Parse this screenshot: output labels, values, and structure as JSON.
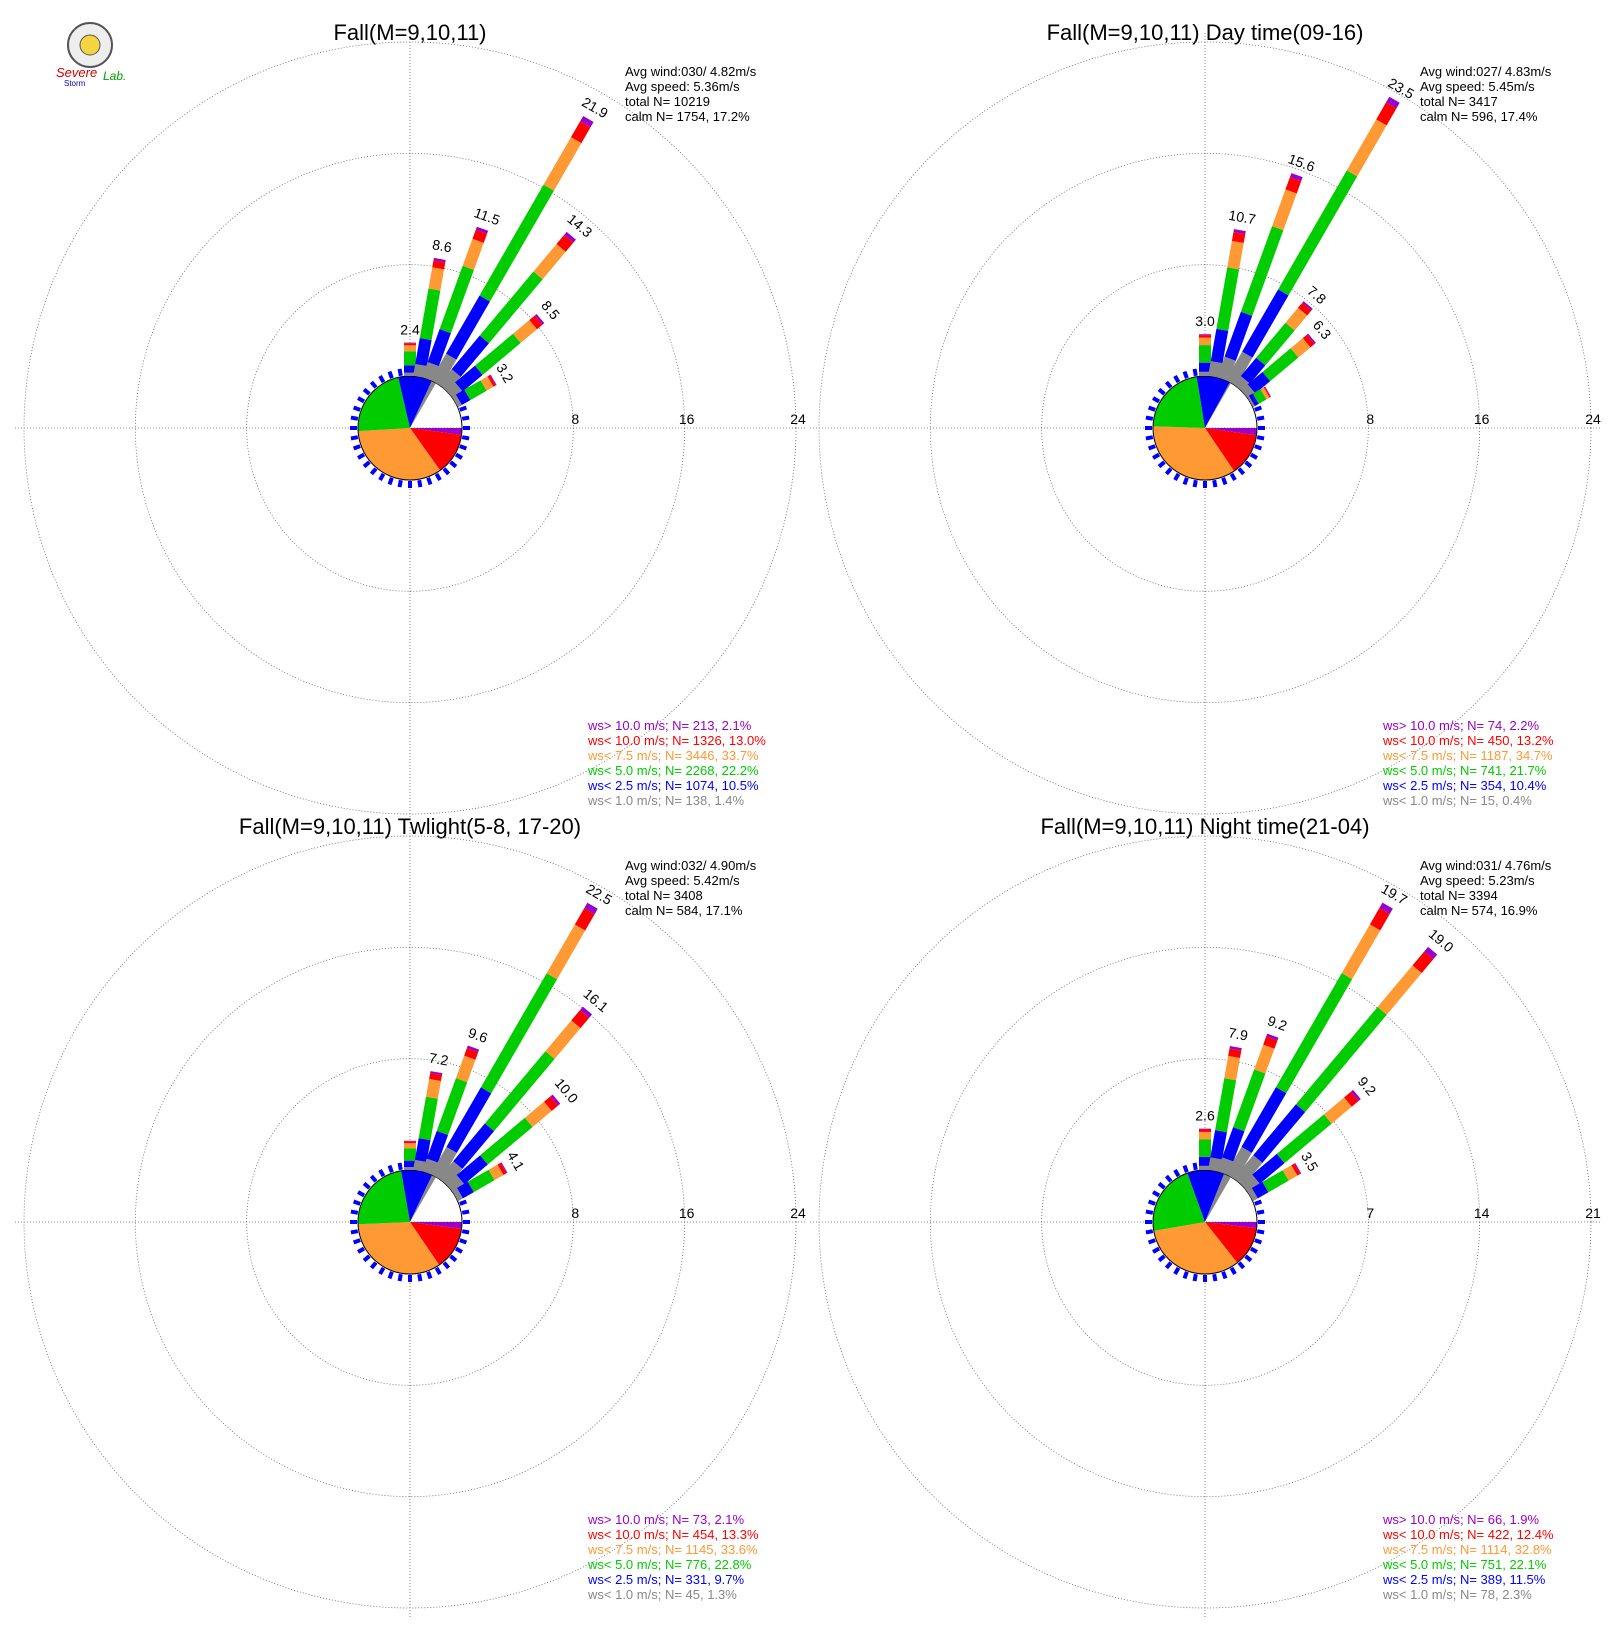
{
  "logo": {
    "line1": "Severe",
    "line2": "Storm",
    "line3": "Lab."
  },
  "colors": {
    "ws_gt10": "#9900cc",
    "ws_lt10": "#ff0000",
    "ws_lt7_5": "#ff9933",
    "ws_lt5": "#00cc00",
    "ws_lt2_5": "#0000ff",
    "ws_lt1": "#888888",
    "grid": "#666666",
    "text": "#000000"
  },
  "chart_data": [
    {
      "type": "wind-rose",
      "title": "Fall(M=9,10,11)",
      "rings": [
        8,
        16,
        24
      ],
      "grid": true,
      "stats": [
        "Avg wind:030/ 4.82m/s",
        "Avg speed: 5.36m/s",
        "total N=       10219",
        "calm N=   1754,  17.2%"
      ],
      "legend": [
        "ws> 10.0 m/s; N=   213,  2.1%",
        "ws< 10.0 m/s; N=  1326, 13.0%",
        "ws<  7.5 m/s; N=  3446, 33.7%",
        "ws<  5.0 m/s; N=  2268, 22.2%",
        "ws<  2.5 m/s; N=  1074, 10.5%",
        "ws<  1.0 m/s; N=   138,  1.4%"
      ],
      "pie_percent": [
        2.1,
        13.0,
        33.7,
        22.2,
        10.5,
        1.4
      ],
      "bars": [
        {
          "dir": 0,
          "total": 2.4,
          "labeled": true
        },
        {
          "dir": 10,
          "total": 8.6,
          "labeled": true
        },
        {
          "dir": 20,
          "total": 11.5,
          "labeled": true
        },
        {
          "dir": 30,
          "total": 21.9,
          "labeled": true
        },
        {
          "dir": 40,
          "total": 14.3,
          "labeled": true
        },
        {
          "dir": 50,
          "total": 8.5,
          "labeled": true
        },
        {
          "dir": 60,
          "total": 3.2,
          "labeled": true
        }
      ]
    },
    {
      "type": "wind-rose",
      "title": "Fall(M=9,10,11) Day time(09-16)",
      "rings": [
        8,
        16,
        24
      ],
      "grid": true,
      "stats": [
        "Avg wind:027/ 4.83m/s",
        "Avg speed: 5.45m/s",
        "total N=        3417",
        "calm N=    596,  17.4%"
      ],
      "legend": [
        "ws> 10.0 m/s; N=    74,  2.2%",
        "ws< 10.0 m/s; N=   450, 13.2%",
        "ws<  7.5 m/s; N=  1187, 34.7%",
        "ws<  5.0 m/s; N=   741, 21.7%",
        "ws<  2.5 m/s; N=   354, 10.4%",
        "ws<  1.0 m/s; N=    15,  0.4%"
      ],
      "pie_percent": [
        2.2,
        13.2,
        34.7,
        21.7,
        10.4,
        0.4
      ],
      "bars": [
        {
          "dir": 0,
          "total": 3.0,
          "labeled": true
        },
        {
          "dir": 10,
          "total": 10.7,
          "labeled": true
        },
        {
          "dir": 20,
          "total": 15.6,
          "labeled": true
        },
        {
          "dir": 30,
          "total": 23.5,
          "labeled": true
        },
        {
          "dir": 40,
          "total": 7.8,
          "labeled": true
        },
        {
          "dir": 50,
          "total": 6.3,
          "labeled": true
        },
        {
          "dir": 60,
          "total": 1.5,
          "labeled": false
        }
      ]
    },
    {
      "type": "wind-rose",
      "title": "Fall(M=9,10,11) Twlight(5-8, 17-20)",
      "rings": [
        8,
        16,
        24
      ],
      "grid": true,
      "stats": [
        "Avg wind:032/ 4.90m/s",
        "Avg speed: 5.42m/s",
        "total N=        3408",
        "calm N=    584,  17.1%"
      ],
      "legend": [
        "ws> 10.0 m/s; N=    73,  2.1%",
        "ws< 10.0 m/s; N=   454, 13.3%",
        "ws<  7.5 m/s; N=  1145, 33.6%",
        "ws<  5.0 m/s; N=   776, 22.8%",
        "ws<  2.5 m/s; N=   331,  9.7%",
        "ws<  1.0 m/s; N=    45,  1.3%"
      ],
      "pie_percent": [
        2.1,
        13.3,
        33.6,
        22.8,
        9.7,
        1.3
      ],
      "bars": [
        {
          "dir": 0,
          "total": 2.1,
          "labeled": false
        },
        {
          "dir": 10,
          "total": 7.2,
          "labeled": true
        },
        {
          "dir": 20,
          "total": 9.6,
          "labeled": true
        },
        {
          "dir": 30,
          "total": 22.5,
          "labeled": true
        },
        {
          "dir": 40,
          "total": 16.1,
          "labeled": true
        },
        {
          "dir": 50,
          "total": 10.0,
          "labeled": true
        },
        {
          "dir": 60,
          "total": 4.1,
          "labeled": true
        }
      ]
    },
    {
      "type": "wind-rose",
      "title": "Fall(M=9,10,11) Night time(21-04)",
      "rings": [
        7,
        14,
        21
      ],
      "grid": true,
      "stats": [
        "Avg wind:031/ 4.76m/s",
        "Avg speed: 5.23m/s",
        "total N=        3394",
        "calm N=    574,  16.9%"
      ],
      "legend": [
        "ws> 10.0 m/s; N=    66,  1.9%",
        "ws< 10.0 m/s; N=   422, 12.4%",
        "ws<  7.5 m/s; N=  1114, 32.8%",
        "ws<  5.0 m/s; N=   751, 22.1%",
        "ws<  2.5 m/s; N=   389, 11.5%",
        "ws<  1.0 m/s; N=    78,  2.3%"
      ],
      "pie_percent": [
        1.9,
        12.4,
        32.8,
        22.1,
        11.5,
        2.3
      ],
      "bars": [
        {
          "dir": 0,
          "total": 2.6,
          "labeled": true
        },
        {
          "dir": 10,
          "total": 7.9,
          "labeled": true
        },
        {
          "dir": 20,
          "total": 9.2,
          "labeled": true
        },
        {
          "dir": 30,
          "total": 19.7,
          "labeled": true
        },
        {
          "dir": 40,
          "total": 19.0,
          "labeled": true
        },
        {
          "dir": 50,
          "total": 9.2,
          "labeled": true
        },
        {
          "dir": 60,
          "total": 3.5,
          "labeled": true
        }
      ]
    }
  ]
}
